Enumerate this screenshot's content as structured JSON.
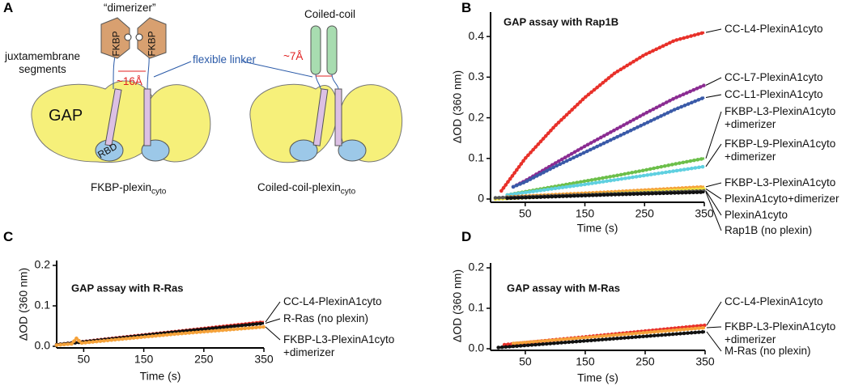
{
  "panel_a": {
    "panel": "A",
    "dimerizer": "“dimerizer”",
    "fkbp_left": "FKBP",
    "fkbp_right": "FKBP",
    "juxtamembrane": "juxtamembrane\nsegments",
    "distance_fkbp": "~16Å",
    "flexible_linker": "flexible linker",
    "coiled_coil": "Coiled-coil",
    "distance_cc": "~7Å",
    "gap": "GAP",
    "rbd": "RBD",
    "caption_left": "FKBP-plexin",
    "caption_left_sub": "cyto",
    "caption_right": "Coiled-coil-plexin",
    "caption_right_sub": "cyto"
  },
  "chart_data": [
    {
      "type": "line",
      "panel": "B",
      "title": "GAP assay with Rap1B",
      "xlabel": "Time (s)",
      "ylabel": "ΔOD (360 nm)",
      "xlim": [
        -8,
        350
      ],
      "xticks": [
        50,
        150,
        250,
        350
      ],
      "ylim": [
        -0.008,
        0.46
      ],
      "yticks": [
        0,
        0.1,
        0.2,
        0.3,
        0.4
      ],
      "series": [
        {
          "name": "CC-L4-PlexinA1cyto",
          "color": "#e8312a",
          "x": [
            10,
            50,
            100,
            150,
            200,
            250,
            300,
            350
          ],
          "values": [
            0.02,
            0.1,
            0.18,
            0.25,
            0.31,
            0.355,
            0.39,
            0.41
          ]
        },
        {
          "name": "CC-L7-PlexinA1cyto",
          "color": "#8b2c92",
          "x": [
            30,
            50,
            100,
            150,
            200,
            250,
            300,
            350
          ],
          "values": [
            0.03,
            0.045,
            0.088,
            0.13,
            0.17,
            0.21,
            0.248,
            0.28
          ]
        },
        {
          "name": "CC-L1-PlexinA1cyto",
          "color": "#3a5aa8",
          "x": [
            30,
            50,
            100,
            150,
            200,
            250,
            300,
            350
          ],
          "values": [
            0.03,
            0.042,
            0.08,
            0.115,
            0.15,
            0.185,
            0.22,
            0.25
          ]
        },
        {
          "name": "FKBP-L3-PlexinA1cyto\n+dimerizer",
          "color": "#6cbf4a",
          "x": [
            20,
            50,
            100,
            150,
            200,
            250,
            300,
            350
          ],
          "values": [
            0.01,
            0.018,
            0.031,
            0.044,
            0.057,
            0.071,
            0.086,
            0.1
          ]
        },
        {
          "name": "FKBP-L9-PlexinA1cyto\n+dimerizer",
          "color": "#5fd0e0",
          "x": [
            20,
            50,
            100,
            150,
            200,
            250,
            300,
            350
          ],
          "values": [
            0.01,
            0.016,
            0.026,
            0.036,
            0.047,
            0.058,
            0.069,
            0.08
          ]
        },
        {
          "name": "FKBP-L3-PlexinA1cyto",
          "color": "#f5a23a",
          "x": [
            20,
            100,
            200,
            350
          ],
          "values": [
            0.005,
            0.011,
            0.018,
            0.03
          ]
        },
        {
          "name": "PlexinA1cyto+dimerizer",
          "color": "#f0e040",
          "x": [
            0,
            100,
            200,
            350
          ],
          "values": [
            0,
            0.007,
            0.014,
            0.025
          ]
        },
        {
          "name": "PlexinA1cyto",
          "color": "#555555",
          "x": [
            0,
            100,
            200,
            350
          ],
          "values": [
            0.003,
            0.008,
            0.013,
            0.02
          ]
        },
        {
          "name": "Rap1B (no plexin)",
          "color": "#111111",
          "x": [
            20,
            100,
            200,
            350
          ],
          "values": [
            0.002,
            0.006,
            0.011,
            0.017
          ]
        }
      ]
    },
    {
      "type": "line",
      "panel": "C",
      "title": "GAP assay with R-Ras",
      "xlabel": "Time (s)",
      "ylabel": "ΔOD (360 nm)",
      "xlim": [
        5,
        350
      ],
      "xticks": [
        50,
        150,
        250,
        350
      ],
      "ylim": [
        -0.004,
        0.212
      ],
      "yticks": [
        {
          "value": 0,
          "label": "0.0"
        },
        0.1,
        0.2
      ],
      "series": [
        {
          "name": "CC-L4-PlexinA1cyto",
          "color": "#e8312a",
          "x": [
            5,
            100,
            200,
            350
          ],
          "values": [
            0.004,
            0.02,
            0.036,
            0.06
          ]
        },
        {
          "name": "R-Ras (no plexin)",
          "color": "#111111",
          "x": [
            5,
            100,
            200,
            350
          ],
          "values": [
            0.004,
            0.019,
            0.035,
            0.057
          ]
        },
        {
          "name": "FKBP-L3-PlexinA1cyto\n+dimerizer",
          "color": "#f5a23a",
          "x": [
            5,
            30,
            38,
            46,
            100,
            200,
            350
          ],
          "values": [
            0.003,
            0.006,
            0.02,
            0.008,
            0.016,
            0.03,
            0.048
          ]
        }
      ]
    },
    {
      "type": "line",
      "panel": "D",
      "title": "GAP assay with M-Ras",
      "xlabel": "Time (s)",
      "ylabel": "ΔOD (360 nm)",
      "xlim": [
        -8,
        350
      ],
      "xticks": [
        50,
        150,
        250,
        350
      ],
      "ylim": [
        -0.004,
        0.212
      ],
      "yticks": [
        {
          "value": 0,
          "label": "0.0"
        },
        0.1,
        0.2
      ],
      "series": [
        {
          "name": "CC-L4-PlexinA1cyto",
          "color": "#e8312a",
          "x": [
            15,
            350
          ],
          "values": [
            0.01,
            0.058
          ]
        },
        {
          "name": "FKBP-L3-PlexinA1cyto\n+dimerizer",
          "color": "#f5a23a",
          "x": [
            30,
            350
          ],
          "values": [
            0.013,
            0.052
          ]
        },
        {
          "name": "M-Ras (no plexin)",
          "color": "#111111",
          "x": [
            5,
            350
          ],
          "values": [
            0.003,
            0.042
          ]
        }
      ]
    }
  ]
}
